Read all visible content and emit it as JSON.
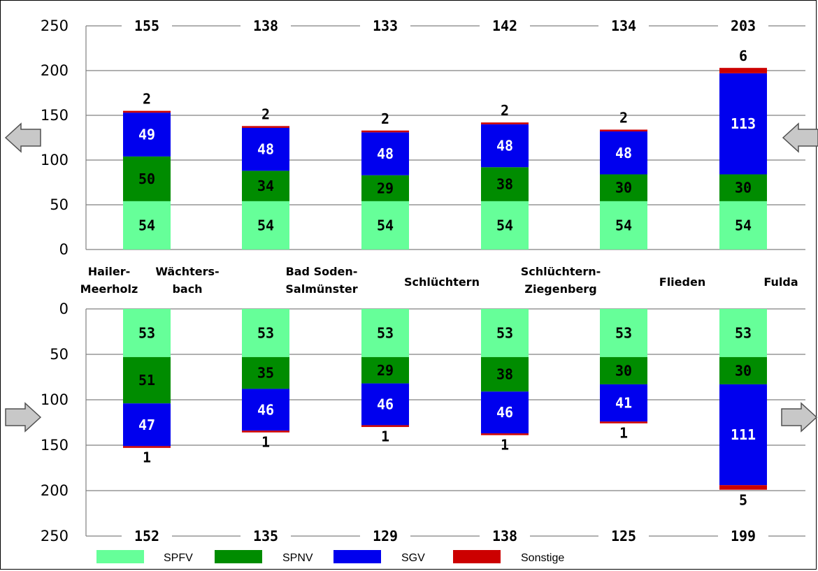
{
  "chart_data": {
    "type": "bar",
    "stacked": true,
    "categories": [
      "Hailer-\nMeerholz",
      "Wächters-\nbach",
      "Bad Soden-\nSalmünster",
      "Schlüchtern",
      "Schlüchtern-\nZiegenberg",
      "Flieden",
      "Fulda"
    ],
    "legend": [
      "SPFV",
      "SPNV",
      "SGV",
      "Sonstige"
    ],
    "colors": {
      "SPFV": "#66ff99",
      "SPNV": "#008c00",
      "SGV": "#0000ee",
      "Sonstige": "#cc0000"
    },
    "upper": {
      "direction_arrow": "left",
      "ylim": [
        0,
        250
      ],
      "yticks": [
        0,
        50,
        100,
        150,
        200,
        250
      ],
      "totals": [
        155,
        138,
        133,
        142,
        134,
        203
      ],
      "series": [
        {
          "name": "SPFV",
          "values": [
            54,
            54,
            54,
            54,
            54,
            54
          ]
        },
        {
          "name": "SPNV",
          "values": [
            50,
            34,
            29,
            38,
            30,
            30
          ]
        },
        {
          "name": "SGV",
          "values": [
            49,
            48,
            48,
            48,
            48,
            113
          ]
        },
        {
          "name": "Sonstige",
          "values": [
            2,
            2,
            2,
            2,
            2,
            6
          ]
        }
      ]
    },
    "lower": {
      "direction_arrow": "right",
      "ylim": [
        0,
        250
      ],
      "yticks": [
        0,
        50,
        100,
        150,
        200,
        250
      ],
      "reversed": true,
      "totals": [
        152,
        135,
        129,
        138,
        125,
        199
      ],
      "series": [
        {
          "name": "SPFV",
          "values": [
            53,
            53,
            53,
            53,
            53,
            53
          ]
        },
        {
          "name": "SPNV",
          "values": [
            51,
            35,
            29,
            38,
            30,
            30
          ]
        },
        {
          "name": "SGV",
          "values": [
            47,
            46,
            46,
            46,
            41,
            111
          ]
        },
        {
          "name": "Sonstige",
          "values": [
            1,
            1,
            1,
            1,
            1,
            5
          ]
        }
      ]
    }
  }
}
